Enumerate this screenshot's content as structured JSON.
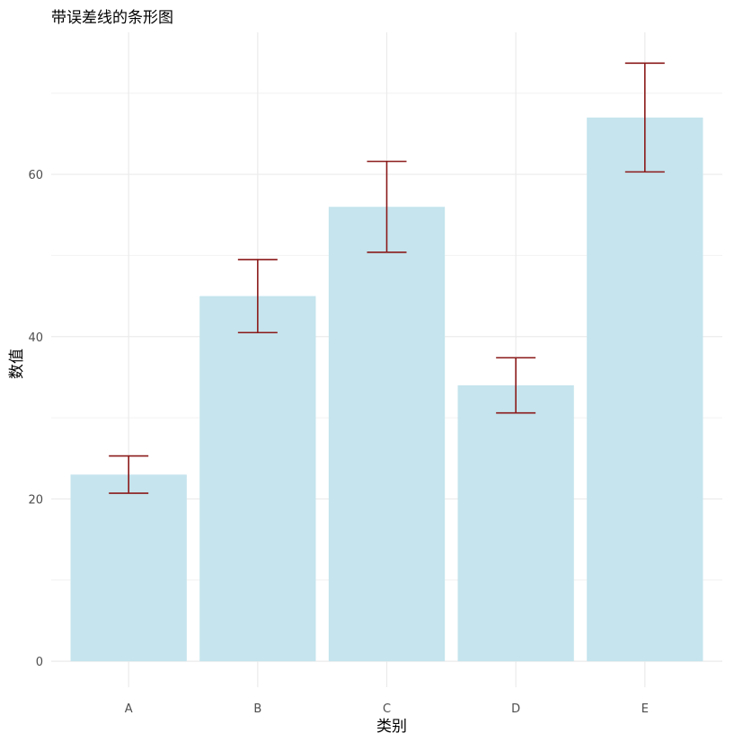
{
  "chart_data": {
    "type": "bar",
    "title": "带误差线的条形图",
    "xlabel": "类别",
    "ylabel": "数值",
    "categories": [
      "A",
      "B",
      "C",
      "D",
      "E"
    ],
    "values": [
      23,
      45,
      56,
      34,
      67
    ],
    "error_low": [
      20.7,
      40.5,
      50.4,
      30.6,
      60.3
    ],
    "error_high": [
      25.3,
      49.5,
      61.6,
      37.4,
      73.7
    ],
    "ylim": [
      -3.2,
      77.5
    ],
    "yticks": [
      0,
      20,
      40,
      60
    ],
    "grid": true,
    "colors": {
      "bar": "#c5e4ed",
      "error_bar": "#8b1a1a",
      "grid_major": "#ebebeb",
      "grid_minor": "#f2f2f2"
    }
  }
}
